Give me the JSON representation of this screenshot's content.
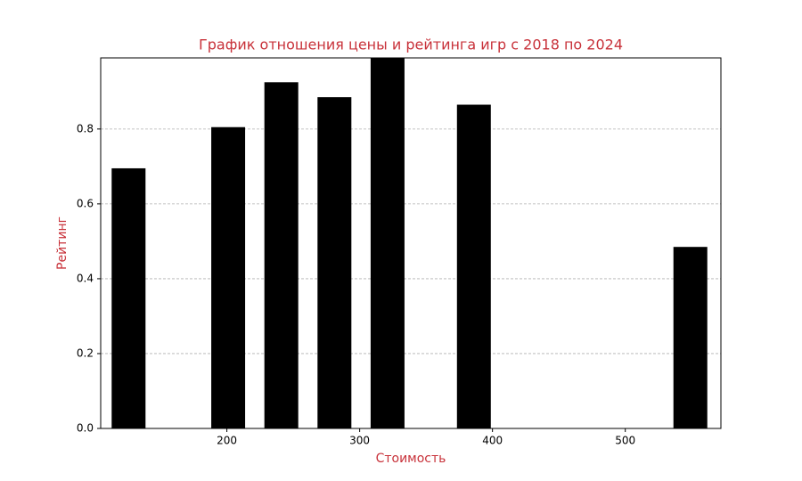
{
  "chart_data": {
    "type": "bar",
    "title": "График отношения цены и рейтинга игр с 2018 по 2024",
    "x_label": "Стоимость",
    "y_label": "Рейтинг",
    "x": [
      126,
      201,
      241,
      281,
      321,
      386,
      549
    ],
    "values": [
      0.695,
      0.805,
      0.925,
      0.885,
      0.99,
      0.865,
      0.485
    ],
    "color": "#000000",
    "xlim": [
      105,
      572
    ],
    "xticks": [
      200,
      300,
      400,
      500
    ],
    "ylim": [
      0,
      0.99
    ],
    "yticks": [
      {
        "value": 0,
        "label": "0.0"
      },
      0.2,
      0.4,
      0.6,
      0.8
    ],
    "grid": true
  }
}
